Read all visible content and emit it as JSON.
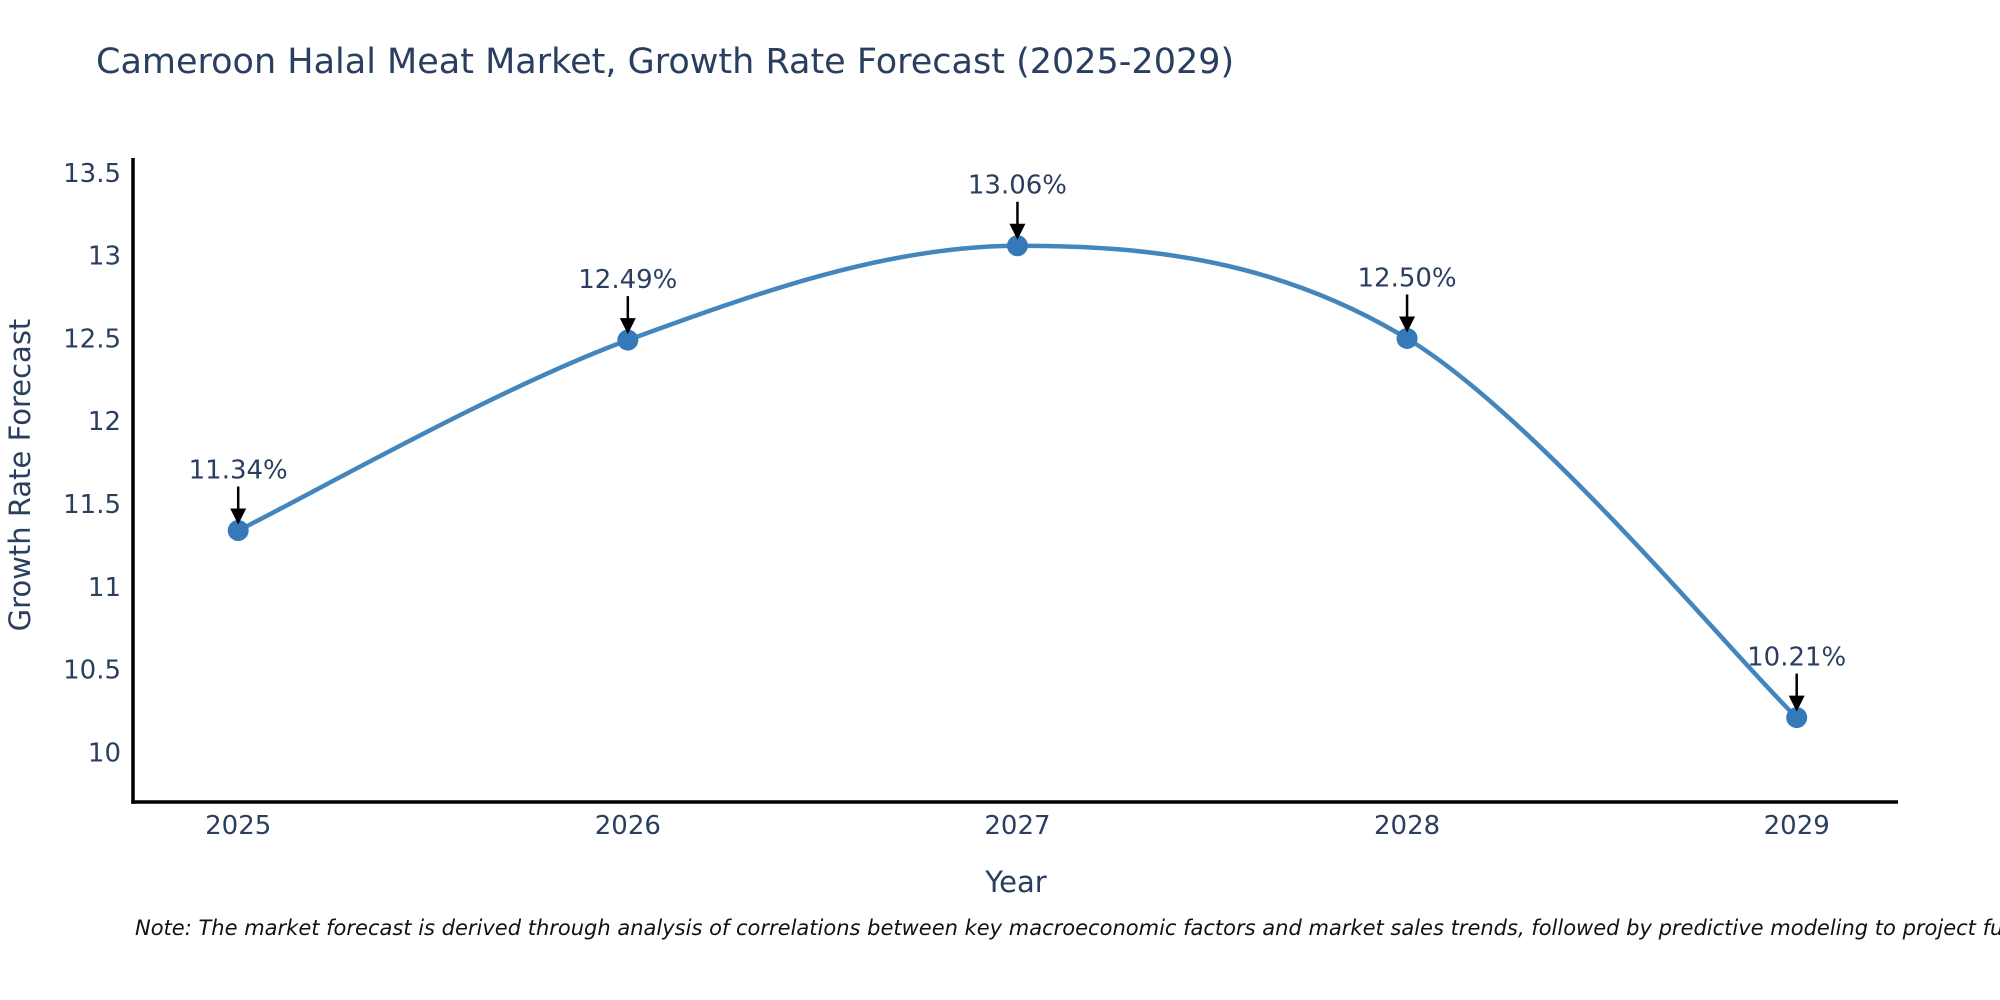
{
  "figure": {
    "title": "Cameroon Halal Meat Market, Growth Rate Forecast (2025-2029)",
    "note": "Note: The market forecast is derived through analysis of correlations between key macroeconomic factors and market sales trends, followed by predictive modeling to project future sal"
  },
  "chart_data": {
    "type": "line",
    "title": "Cameroon Halal Meat Market, Growth Rate Forecast (2025-2029)",
    "xlabel": "Year",
    "ylabel": "Growth Rate Forecast",
    "x": [
      2025,
      2026,
      2027,
      2028,
      2029
    ],
    "series": [
      {
        "name": "Growth Rate Forecast",
        "values": [
          11.34,
          12.49,
          13.06,
          12.5,
          10.21
        ]
      }
    ],
    "point_labels": [
      "11.34%",
      "12.49%",
      "13.06%",
      "12.50%",
      "10.21%"
    ],
    "x_ticks": [
      "2025",
      "2026",
      "2027",
      "2028",
      "2029"
    ],
    "y_ticks": [
      "10",
      "10.5",
      "11",
      "11.5",
      "12",
      "12.5",
      "13",
      "13.5"
    ],
    "xlim": [
      2024.73,
      2029.26
    ],
    "ylim": [
      9.7,
      13.59
    ],
    "grid": false,
    "legend": "none",
    "line_shape": "spline",
    "marker": "circle",
    "colors": {
      "line": "#4286bd",
      "marker": "#3579b8",
      "axis_line": "#000000",
      "text": "#2a3f5f",
      "arrow": "#000000",
      "note": "#111111",
      "background": "#ffffff"
    }
  }
}
